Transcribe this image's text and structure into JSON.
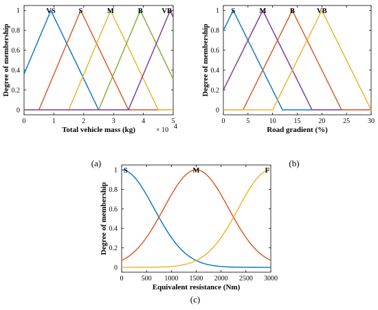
{
  "colors": {
    "blue": "#0072BD",
    "orange": "#D95319",
    "yellow": "#EDB120",
    "purple": "#7E2F8E",
    "green": "#77AC30",
    "axis": "#000000"
  },
  "chart_data": [
    {
      "type": "line",
      "panel_label": "(a)",
      "xlabel": "Total vehicle mass (kg)",
      "ylabel": "Degree of membership",
      "x_exponent_label": "× 10",
      "x_exponent_power": "4",
      "xlim": [
        0,
        5
      ],
      "ylim": [
        -0.05,
        1.05
      ],
      "xticks": [
        0,
        1,
        2,
        3,
        4,
        5
      ],
      "xtick_labels": [
        "0",
        "1",
        "2",
        "3",
        "4",
        "5"
      ],
      "yticks": [
        0,
        0.2,
        0.4,
        0.6,
        0.8,
        1
      ],
      "ytick_labels": [
        "0",
        "0.2",
        "0.4",
        "0.6",
        "0.8",
        "1"
      ],
      "series": [
        {
          "name": "VS",
          "color": "blue",
          "points": [
            [
              0,
              0.36
            ],
            [
              0.9,
              1
            ],
            [
              2.5,
              0
            ],
            [
              5,
              0
            ]
          ]
        },
        {
          "name": "S",
          "color": "orange",
          "points": [
            [
              0,
              0
            ],
            [
              0.5,
              0
            ],
            [
              1.9,
              1
            ],
            [
              3.5,
              0
            ],
            [
              5,
              0
            ]
          ]
        },
        {
          "name": "M",
          "color": "yellow",
          "points": [
            [
              0,
              0
            ],
            [
              1.5,
              0
            ],
            [
              2.9,
              1
            ],
            [
              4.5,
              0
            ],
            [
              5,
              0
            ]
          ]
        },
        {
          "name": "B",
          "color": "green",
          "points": [
            [
              0,
              0
            ],
            [
              2.5,
              0
            ],
            [
              3.9,
              1
            ],
            [
              5,
              0.31
            ]
          ]
        },
        {
          "name": "VB",
          "color": "purple",
          "points": [
            [
              0,
              0
            ],
            [
              3.5,
              0
            ],
            [
              4.9,
              1
            ],
            [
              5,
              0.93
            ]
          ]
        }
      ],
      "mf_labels": [
        {
          "text": "VS",
          "x": 0.9
        },
        {
          "text": "S",
          "x": 1.9
        },
        {
          "text": "M",
          "x": 2.9
        },
        {
          "text": "B",
          "x": 3.9
        },
        {
          "text": "VB",
          "x": 4.9
        }
      ]
    },
    {
      "type": "line",
      "panel_label": "(b)",
      "xlabel": "Road gradient (%)",
      "ylabel": "Degree of membership",
      "xlim": [
        0,
        30
      ],
      "ylim": [
        -0.05,
        1.05
      ],
      "xticks": [
        0,
        5,
        10,
        15,
        20,
        25,
        30
      ],
      "xtick_labels": [
        "0",
        "5",
        "10",
        "15",
        "20",
        "25",
        "30"
      ],
      "yticks": [
        0,
        0.2,
        0.4,
        0.6,
        0.8,
        1
      ],
      "ytick_labels": [
        "0",
        "0.2",
        "0.4",
        "0.6",
        "0.8",
        "1"
      ],
      "series": [
        {
          "name": "S",
          "color": "blue",
          "points": [
            [
              0,
              0.8
            ],
            [
              2,
              1
            ],
            [
              12,
              0
            ],
            [
              30,
              0
            ]
          ]
        },
        {
          "name": "M",
          "color": "purple",
          "points": [
            [
              0,
              0.2
            ],
            [
              8,
              1
            ],
            [
              18,
              0
            ],
            [
              30,
              0
            ]
          ]
        },
        {
          "name": "B",
          "color": "orange",
          "points": [
            [
              0,
              0
            ],
            [
              4,
              0
            ],
            [
              14,
              1
            ],
            [
              24,
              0
            ],
            [
              30,
              0
            ]
          ]
        },
        {
          "name": "VB",
          "color": "yellow",
          "points": [
            [
              0,
              0
            ],
            [
              10,
              0
            ],
            [
              20,
              1
            ],
            [
              30,
              0
            ]
          ]
        }
      ],
      "mf_labels": [
        {
          "text": "S",
          "x": 2
        },
        {
          "text": "M",
          "x": 8
        },
        {
          "text": "B",
          "x": 14
        },
        {
          "text": "VB",
          "x": 20
        }
      ]
    },
    {
      "type": "line",
      "panel_label": "(c)",
      "xlabel": "Equivalent resistance (Nm)",
      "ylabel": "Degree of membership",
      "xlim": [
        0,
        3000
      ],
      "ylim": [
        -0.05,
        1.05
      ],
      "xticks": [
        0,
        500,
        1000,
        1500,
        2000,
        2500,
        3000
      ],
      "xtick_labels": [
        "0",
        "500",
        "1000",
        "1500",
        "2000",
        "2500",
        "3000"
      ],
      "yticks": [
        0,
        0.2,
        0.4,
        0.6,
        0.8,
        1
      ],
      "ytick_labels": [
        "0",
        "0.2",
        "0.4",
        "0.6",
        "0.8",
        "1"
      ],
      "series": [
        {
          "name": "S",
          "color": "blue",
          "gauss": {
            "mean": 0,
            "sigma": 650
          }
        },
        {
          "name": "M",
          "color": "orange",
          "gauss": {
            "mean": 1500,
            "sigma": 650
          }
        },
        {
          "name": "F",
          "color": "yellow",
          "gauss": {
            "mean": 3000,
            "sigma": 650
          }
        }
      ],
      "mf_labels": [
        {
          "text": "S",
          "x": 0
        },
        {
          "text": "M",
          "x": 1500
        },
        {
          "text": "F",
          "x": 3000
        }
      ]
    }
  ]
}
